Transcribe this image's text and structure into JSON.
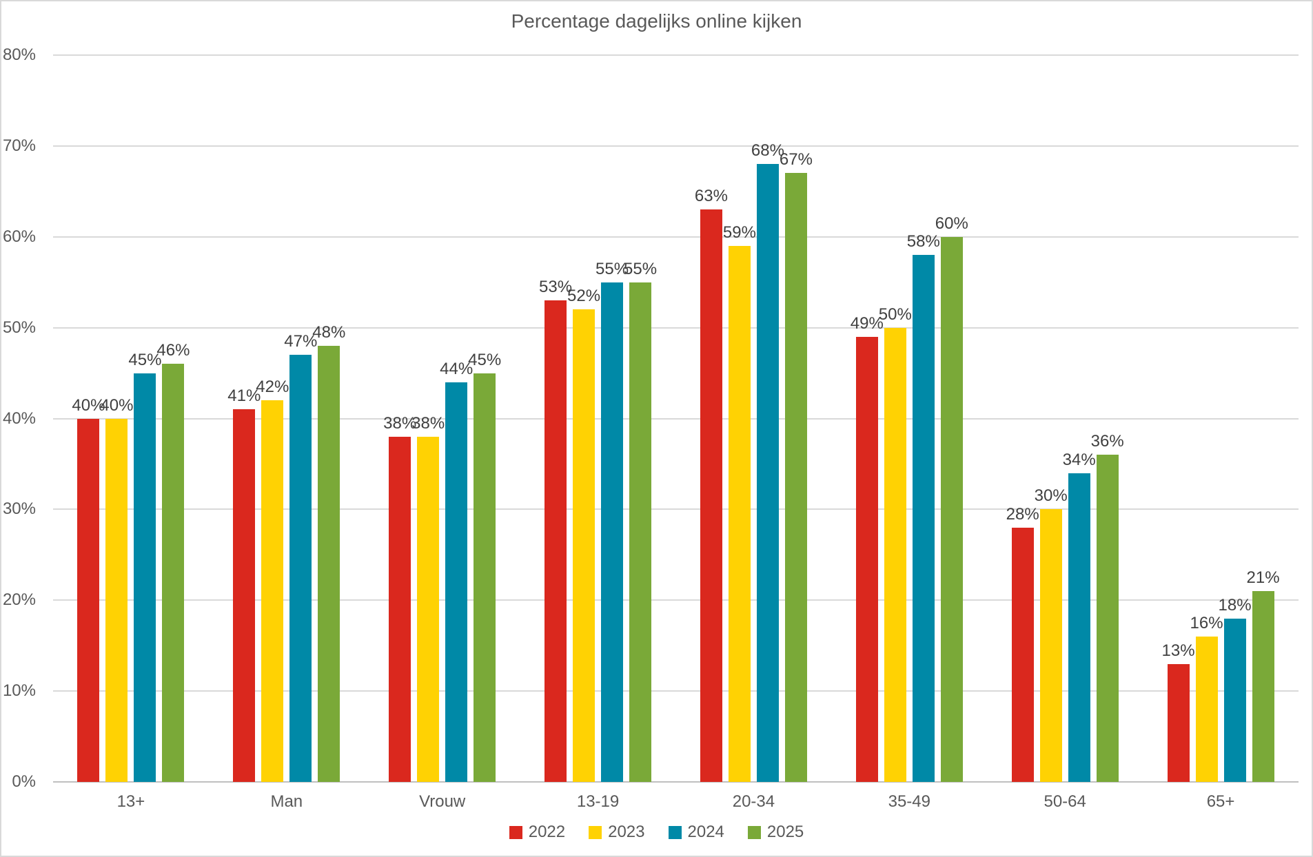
{
  "chart_data": {
    "type": "bar",
    "title": "Percentage dagelijks online kijken",
    "categories": [
      "13+",
      "Man",
      "Vrouw",
      "13-19",
      "20-34",
      "35-49",
      "50-64",
      "65+"
    ],
    "series": [
      {
        "name": "2022",
        "color": "#DA281E",
        "values": [
          40,
          41,
          38,
          53,
          63,
          49,
          28,
          13
        ]
      },
      {
        "name": "2023",
        "color": "#FFD203",
        "values": [
          40,
          42,
          38,
          52,
          59,
          50,
          30,
          16
        ]
      },
      {
        "name": "2024",
        "color": "#0089A7",
        "values": [
          45,
          47,
          44,
          55,
          68,
          58,
          34,
          18
        ]
      },
      {
        "name": "2025",
        "color": "#7AA938",
        "values": [
          46,
          48,
          45,
          55,
          67,
          60,
          36,
          21
        ]
      }
    ],
    "ylim": [
      0,
      80
    ],
    "ytick_step": 10,
    "ytick_suffix": "%",
    "data_label_suffix": "%",
    "grid": true,
    "legend_position": "bottom"
  },
  "palette": {
    "gridline": "#D9D9D9",
    "axis_line": "#BFBFBF",
    "frame_border": "#D9D9D9",
    "title_text": "#595959",
    "tick_text": "#595959",
    "data_label_text": "#404040",
    "background": "#FFFFFF"
  }
}
